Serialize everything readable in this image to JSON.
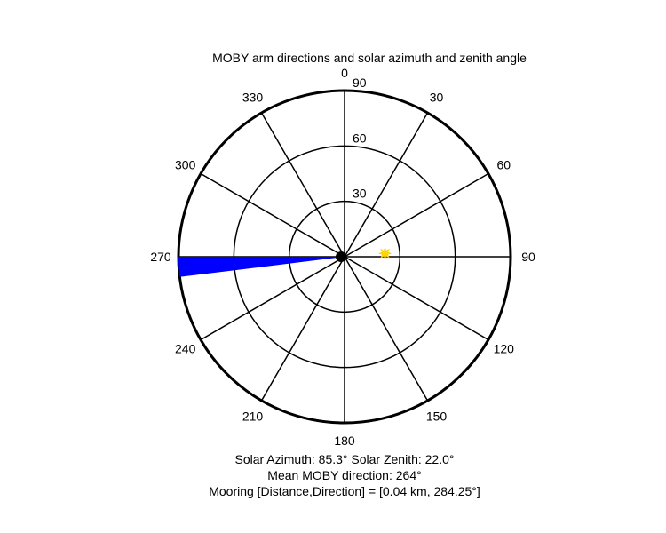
{
  "chart_data": {
    "type": "polar",
    "title": "MOBY arm directions and solar azimuth and zenith angle",
    "angle_ticks": [
      "0",
      "30",
      "60",
      "90",
      "120",
      "150",
      "180",
      "210",
      "240",
      "270",
      "300",
      "330"
    ],
    "angle_tick_values": [
      0,
      30,
      60,
      90,
      120,
      150,
      180,
      210,
      240,
      270,
      300,
      330
    ],
    "radial_ticks": [
      "30",
      "60",
      "90"
    ],
    "radial_tick_values": [
      30,
      60,
      90
    ],
    "rmax": 90,
    "angle_zero": "top",
    "angle_direction": "clockwise",
    "grid": true,
    "arm_wedge": {
      "direction_from": 263,
      "direction_to": 270,
      "r": 90,
      "color": "#0000ff"
    },
    "center_marker": {
      "r": 0,
      "color": "#000000"
    },
    "sun": {
      "azimuth": 85.3,
      "zenith": 22.0,
      "color": "#ffd700"
    },
    "annotations": [
      "Solar Azimuth: 85.3°    Solar Zenith: 22.0°",
      "Mean MOBY direction: 264°",
      "Mooring [Distance,Direction] = [0.04 km, 284.25°]"
    ]
  }
}
